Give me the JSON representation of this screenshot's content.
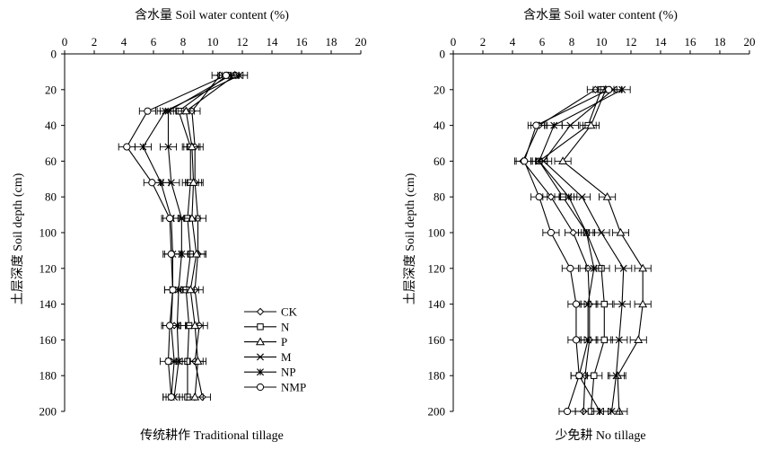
{
  "figure": {
    "x_axis_title": "含水量 Soil water content (%)",
    "y_axis_title": "土层深度 Soil depth (cm)"
  },
  "chart_data": [
    {
      "type": "line",
      "panel": "left",
      "caption": "传统耕作 Traditional tillage",
      "xlabel": "含水量 Soil water content (%)",
      "ylabel": "土层深度 Soil depth (cm)",
      "xlim": [
        0,
        20
      ],
      "ylim": [
        200,
        0
      ],
      "x_ticks": [
        "0",
        "2",
        "4",
        "6",
        "8",
        "10",
        "12",
        "14",
        "16",
        "18",
        "20"
      ],
      "y_ticks": [
        "0",
        "20",
        "40",
        "60",
        "80",
        "100",
        "120",
        "140",
        "160",
        "180",
        "200"
      ],
      "legend_position": "lower-middle",
      "depths": [
        12,
        32,
        52,
        72,
        92,
        112,
        132,
        152,
        172,
        192
      ],
      "series": [
        {
          "name": "CK",
          "marker": "diamond",
          "values": [
            10.5,
            8.6,
            8.8,
            8.8,
            9.0,
            9.0,
            8.8,
            9.1,
            8.8,
            9.3
          ]
        },
        {
          "name": "N",
          "marker": "square",
          "values": [
            11.0,
            7.7,
            8.5,
            8.5,
            8.3,
            8.5,
            8.2,
            8.4,
            8.3,
            8.3
          ]
        },
        {
          "name": "P",
          "marker": "triangle",
          "values": [
            11.5,
            8.2,
            8.6,
            8.7,
            8.6,
            8.9,
            8.5,
            8.8,
            9.0,
            8.8
          ]
        },
        {
          "name": "M",
          "marker": "x",
          "values": [
            11.2,
            7.0,
            7.0,
            7.2,
            7.9,
            7.9,
            7.7,
            7.6,
            7.7,
            7.4
          ]
        },
        {
          "name": "NP",
          "marker": "star",
          "values": [
            11.8,
            6.8,
            5.3,
            6.5,
            7.2,
            7.3,
            7.3,
            7.2,
            7.4,
            7.2
          ]
        },
        {
          "name": "NMP",
          "marker": "circle",
          "values": [
            10.9,
            5.6,
            4.2,
            5.9,
            7.1,
            7.2,
            7.3,
            7.1,
            7.0,
            7.2
          ]
        }
      ]
    },
    {
      "type": "line",
      "panel": "right",
      "caption": "少免耕 No tillage",
      "xlabel": "含水量 Soil water content (%)",
      "ylabel": "土层深度 Soil depth (cm)",
      "xlim": [
        0,
        20
      ],
      "ylim": [
        200,
        0
      ],
      "x_ticks": [
        "0",
        "2",
        "4",
        "6",
        "8",
        "10",
        "12",
        "14",
        "16",
        "18",
        "20"
      ],
      "y_ticks": [
        "0",
        "20",
        "40",
        "60",
        "80",
        "100",
        "120",
        "140",
        "160",
        "180",
        "200"
      ],
      "depths": [
        20,
        40,
        60,
        80,
        100,
        120,
        140,
        160,
        180,
        200
      ],
      "series": [
        {
          "name": "CK",
          "marker": "diamond",
          "values": [
            9.6,
            5.8,
            4.7,
            6.6,
            8.1,
            9.1,
            9.2,
            9.2,
            8.9,
            8.8
          ]
        },
        {
          "name": "N",
          "marker": "square",
          "values": [
            10.0,
            9.1,
            5.8,
            7.4,
            9.0,
            10.0,
            10.2,
            10.2,
            9.5,
            9.3
          ]
        },
        {
          "name": "P",
          "marker": "triangle",
          "values": [
            10.3,
            9.3,
            7.4,
            10.4,
            11.3,
            12.8,
            12.8,
            12.5,
            11.1,
            11.2
          ]
        },
        {
          "name": "M",
          "marker": "x",
          "values": [
            10.8,
            7.9,
            6.1,
            8.7,
            10.0,
            11.5,
            11.4,
            11.2,
            11.0,
            10.7
          ]
        },
        {
          "name": "NP",
          "marker": "star",
          "values": [
            11.4,
            6.8,
            5.8,
            7.8,
            9.0,
            9.5,
            9.1,
            9.1,
            8.5,
            9.9
          ]
        },
        {
          "name": "NMP",
          "marker": "circle",
          "values": [
            10.5,
            5.6,
            4.8,
            5.8,
            6.6,
            7.9,
            8.3,
            8.3,
            8.5,
            7.7
          ]
        }
      ]
    }
  ]
}
